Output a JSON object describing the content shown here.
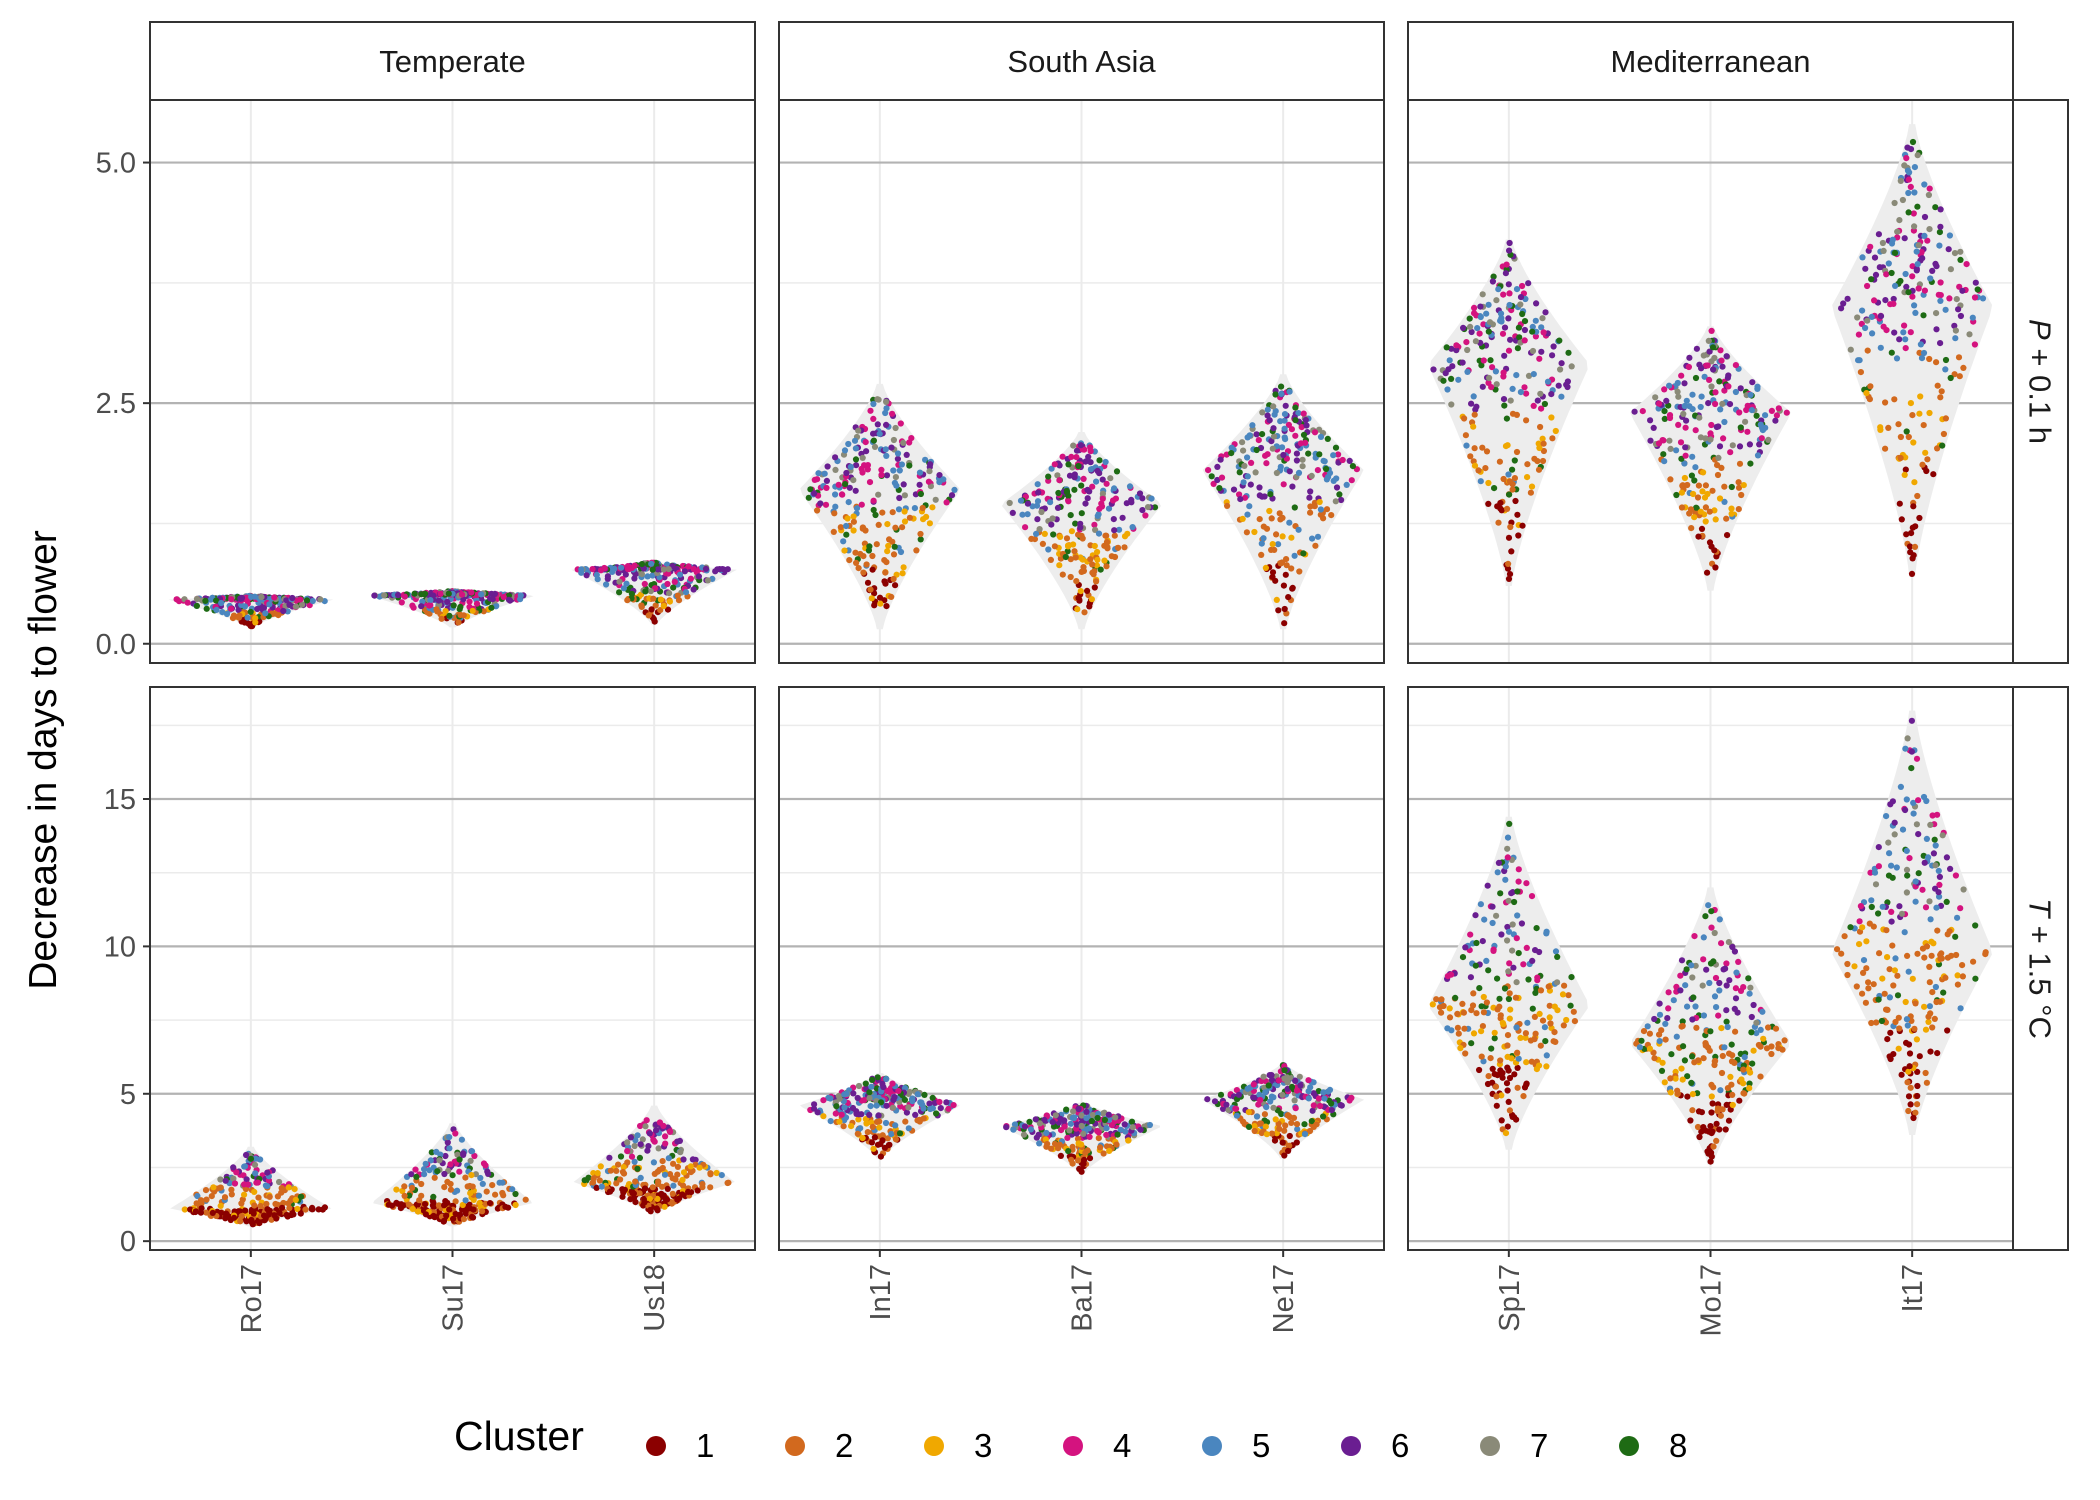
{
  "chart_data": {
    "type": "scatter",
    "subtype": "beeswarm-violin, faceted grid",
    "ylabel": "Decrease in days to flower",
    "columns": [
      "Temperate",
      "South Asia",
      "Mediterranean"
    ],
    "rows": [
      {
        "label_prefix": "P",
        "label_suffix": " + 0.1 h",
        "ylim": [
          -0.2,
          5.65
        ],
        "ticks": [
          0,
          2.5,
          5
        ],
        "tick_labels": [
          "0.0",
          "2.5",
          "5.0"
        ],
        "minor": [
          1.25,
          3.75
        ]
      },
      {
        "label_prefix": "T",
        "label_suffix": " + 1.5 °C",
        "ylim": [
          -0.3,
          18.8
        ],
        "ticks": [
          0,
          5,
          10,
          15
        ],
        "tick_labels": [
          "0",
          "5",
          "10",
          "15"
        ],
        "minor": [
          2.5,
          7.5,
          12.5,
          17.5
        ]
      }
    ],
    "groups": [
      [
        "Ro17",
        "Su17",
        "Us18"
      ],
      [
        "In17",
        "Ba17",
        "Ne17"
      ],
      [
        "Sp17",
        "Mo17",
        "It17"
      ]
    ],
    "legend": {
      "title": "Cluster",
      "position": "bottom",
      "items": [
        {
          "label": "1",
          "color": "#8B0000"
        },
        {
          "label": "2",
          "color": "#D2691E"
        },
        {
          "label": "3",
          "color": "#F0A800"
        },
        {
          "label": "4",
          "color": "#D4137F"
        },
        {
          "label": "5",
          "color": "#4A86BF"
        },
        {
          "label": "6",
          "color": "#6A1E91"
        },
        {
          "label": "7",
          "color": "#8A8A78"
        },
        {
          "label": "8",
          "color": "#1E6B14"
        }
      ]
    },
    "distributions": [
      [
        [
          {
            "group": "Ro17",
            "min": 0.17,
            "max": 0.5,
            "median": 0.46
          },
          {
            "group": "Su17",
            "min": 0.17,
            "max": 0.55,
            "median": 0.5
          },
          {
            "group": "Us18",
            "min": 0.2,
            "max": 0.85,
            "median": 0.77
          }
        ],
        [
          {
            "group": "In17",
            "min": 0.15,
            "max": 2.7,
            "median": 1.6
          },
          {
            "group": "Ba17",
            "min": 0.15,
            "max": 2.2,
            "median": 1.45
          },
          {
            "group": "Ne17",
            "min": 0.15,
            "max": 2.8,
            "median": 1.8
          }
        ],
        [
          {
            "group": "Sp17",
            "min": 0.6,
            "max": 4.2,
            "median": 2.9
          },
          {
            "group": "Mo17",
            "min": 0.55,
            "max": 3.3,
            "median": 2.4
          },
          {
            "group": "It17",
            "min": 0.7,
            "max": 5.4,
            "median": 3.5
          }
        ]
      ],
      [
        [
          {
            "group": "Ro17",
            "min": 0.5,
            "max": 3.2,
            "median": 1.1
          },
          {
            "group": "Su17",
            "min": 0.5,
            "max": 4.0,
            "median": 1.3
          },
          {
            "group": "Us18",
            "min": 0.9,
            "max": 4.6,
            "median": 2.0
          }
        ],
        [
          {
            "group": "In17",
            "min": 2.8,
            "max": 5.7,
            "median": 4.6
          },
          {
            "group": "Ba17",
            "min": 2.3,
            "max": 4.7,
            "median": 3.9
          },
          {
            "group": "Ne17",
            "min": 2.8,
            "max": 6.0,
            "median": 4.8
          }
        ],
        [
          {
            "group": "Sp17",
            "min": 3.1,
            "max": 14.4,
            "median": 8.0
          },
          {
            "group": "Mo17",
            "min": 2.6,
            "max": 12.0,
            "median": 6.7
          },
          {
            "group": "It17",
            "min": 3.6,
            "max": 18.0,
            "median": 9.8
          }
        ]
      ]
    ],
    "grid": true
  }
}
